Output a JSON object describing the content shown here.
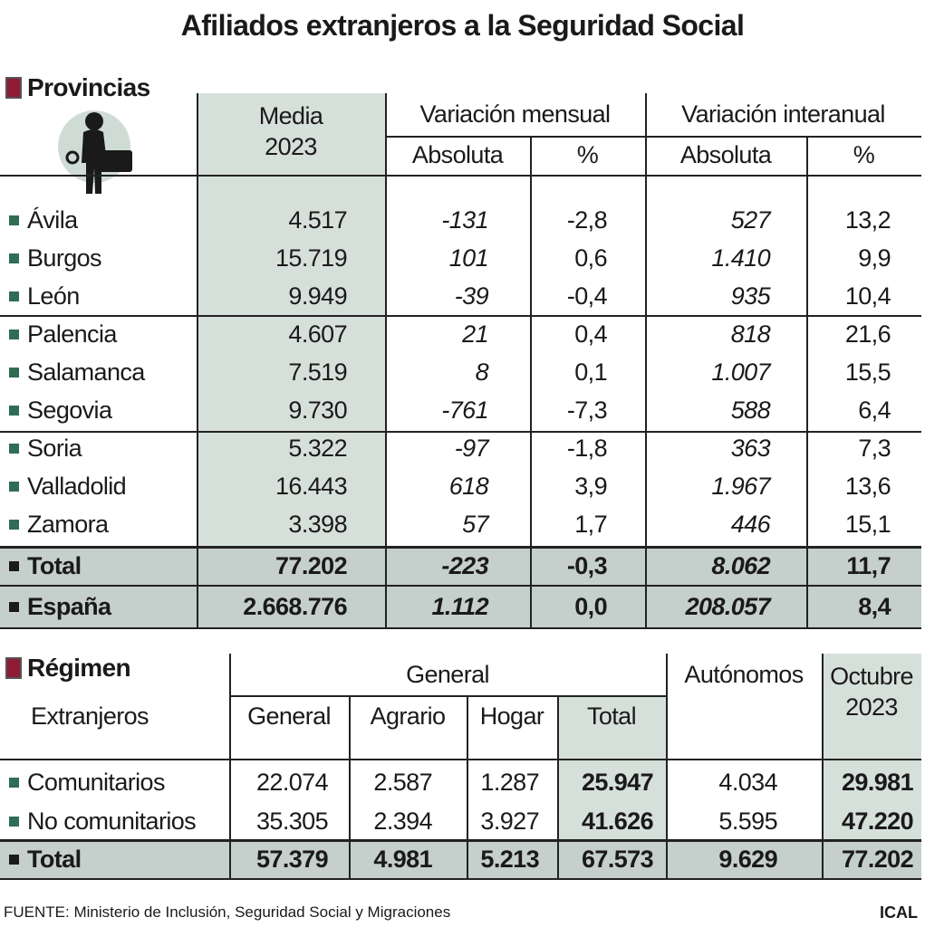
{
  "title": "Afiliados extranjeros a la Seguridad Social",
  "provincias": {
    "heading": "Provincias",
    "header": {
      "media": "Media 2023",
      "mensual": "Variación mensual",
      "interanual": "Variación interanual",
      "mensual_abs": "Absoluta",
      "mensual_pct": "%",
      "interanual_abs": "Absoluta",
      "interanual_pct": "%"
    },
    "rows": [
      [
        "Ávila",
        "4.517",
        "-131",
        "-2,8",
        "527",
        "13,2"
      ],
      [
        "Burgos",
        "15.719",
        "101",
        "0,6",
        "1.410",
        "9,9"
      ],
      [
        "León",
        "9.949",
        "-39",
        "-0,4",
        "935",
        "10,4"
      ],
      [
        "Palencia",
        "4.607",
        "21",
        "0,4",
        "818",
        "21,6"
      ],
      [
        "Salamanca",
        "7.519",
        "8",
        "0,1",
        "1.007",
        "15,5"
      ],
      [
        "Segovia",
        "9.730",
        "-761",
        "-7,3",
        "588",
        "6,4"
      ],
      [
        "Soria",
        "5.322",
        "-97",
        "-1,8",
        "363",
        "7,3"
      ],
      [
        "Valladolid",
        "16.443",
        "618",
        "3,9",
        "1.967",
        "13,6"
      ],
      [
        "Zamora",
        "3.398",
        "57",
        "1,7",
        "446",
        "15,1"
      ]
    ],
    "totals": [
      [
        "Total",
        "77.202",
        "-223",
        "-0,3",
        "8.062",
        "11,7"
      ],
      [
        "España",
        "2.668.776",
        "1.112",
        "0,0",
        "208.057",
        "8,4"
      ]
    ]
  },
  "regimen": {
    "heading": "Régimen",
    "subheading": "Extranjeros",
    "header": {
      "general_group": "General",
      "general": "General",
      "agrario": "Agrario",
      "hogar": "Hogar",
      "total": "Total",
      "autonomos": "Autónomos",
      "octubre": "Octubre 2023"
    },
    "rows": [
      [
        "Comunitarios",
        "22.074",
        "2.587",
        "1.287",
        "25.947",
        "4.034",
        "29.981"
      ],
      [
        "No comunitarios",
        "35.305",
        "2.394",
        "3.927",
        "41.626",
        "5.595",
        "47.220"
      ]
    ],
    "total": [
      "Total",
      "57.379",
      "4.981",
      "5.213",
      "67.573",
      "9.629",
      "77.202"
    ]
  },
  "footer": {
    "source": "FUENTE: Ministerio de Inclusión, Seguridad Social y Migraciones",
    "brand": "ICAL"
  }
}
